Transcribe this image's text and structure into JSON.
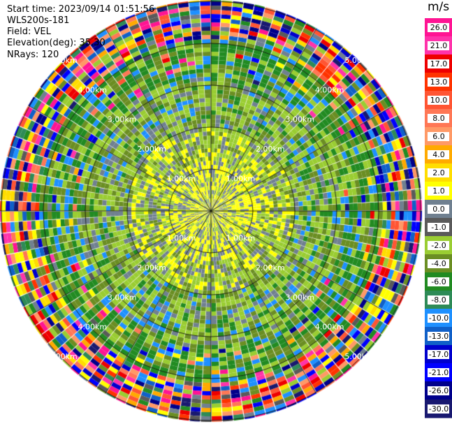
{
  "info": {
    "start_time": "Start time: 2023/09/14 01:51:56",
    "instrument": "WLS200s-181",
    "field": "Field: VEL",
    "elevation": "Elevation(deg): 35.30",
    "nrays": "NRays: 120"
  },
  "chart_data": {
    "type": "heatmap",
    "projection": "polar-ppi",
    "field": "VEL",
    "rays": 120,
    "elevation_deg": 35.3,
    "max_range_km": 5.9,
    "range_rings_km": [
      1,
      2,
      3,
      4,
      5
    ],
    "ring_labels": [
      "1.00km",
      "2.00km",
      "3.00km",
      "4.00km",
      "5.00km"
    ],
    "colorbar": {
      "unit": "m/s",
      "ticks": [
        "26.0",
        "21.0",
        "17.0",
        "13.0",
        "10.0",
        "8.0",
        "6.0",
        "4.0",
        "2.0",
        "1.0",
        "0.0",
        "-1.0",
        "-2.0",
        "-4.0",
        "-6.0",
        "-8.0",
        "-10.0",
        "-13.0",
        "-17.0",
        "-21.0",
        "-26.0",
        "-30.0"
      ],
      "colors": [
        "#ff1493",
        "#ff33aa",
        "#ee0000",
        "#ff3300",
        "#ff5533",
        "#ff7755",
        "#ff9966",
        "#ffaa00",
        "#ffdd00",
        "#ffff00",
        "#708090",
        "#5a5a5a",
        "#9acd32",
        "#6b8e23",
        "#228b22",
        "#2e8b57",
        "#1e90ff",
        "#1060c8",
        "#0000cd",
        "#0000ff",
        "#00008b",
        "#191970"
      ]
    }
  }
}
